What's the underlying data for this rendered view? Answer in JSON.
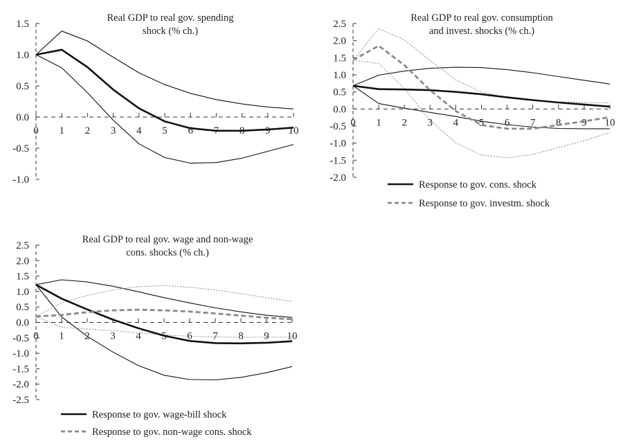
{
  "chart_data": [
    {
      "type": "line",
      "id": "spending",
      "title": [
        "Real GDP to real gov. spending",
        "shock (% ch.)"
      ],
      "x": [
        0,
        1,
        2,
        3,
        4,
        5,
        6,
        7,
        8,
        9,
        10
      ],
      "xticks": [
        "0",
        "1",
        "2",
        "3",
        "4",
        "5",
        "6",
        "7",
        "8",
        "9",
        "10"
      ],
      "ylim": [
        -1.0,
        1.5
      ],
      "yticks": [
        1.5,
        1.0,
        0.5,
        0.0,
        -0.5,
        -1.0
      ],
      "ytick_labels": [
        "1.5",
        "1.0",
        "0.5",
        "0.0",
        "-0.5",
        "-1.0"
      ],
      "series": [
        {
          "name": "Response",
          "role": "main",
          "color": "#111111",
          "style": "solid-thick",
          "values": [
            1.0,
            1.08,
            0.8,
            0.44,
            0.14,
            -0.07,
            -0.18,
            -0.22,
            -0.22,
            -0.2,
            -0.17
          ]
        },
        {
          "name": "Upper band",
          "role": "band",
          "color": "#111111",
          "style": "solid-thin",
          "values": [
            1.0,
            1.38,
            1.22,
            0.96,
            0.71,
            0.52,
            0.38,
            0.28,
            0.21,
            0.16,
            0.13
          ]
        },
        {
          "name": "Lower band",
          "role": "band",
          "color": "#111111",
          "style": "solid-thin",
          "values": [
            1.0,
            0.79,
            0.39,
            -0.05,
            -0.43,
            -0.65,
            -0.74,
            -0.73,
            -0.66,
            -0.55,
            -0.44
          ]
        }
      ],
      "legend": []
    },
    {
      "type": "line",
      "id": "cons-invest",
      "title": [
        "Real GDP to real gov. consumption",
        "and invest. shocks (% ch.)"
      ],
      "x": [
        0,
        1,
        2,
        3,
        4,
        5,
        6,
        7,
        8,
        9,
        10
      ],
      "xticks": [
        "0",
        "1",
        "2",
        "3",
        "4",
        "5",
        "6",
        "7",
        "8",
        "9",
        "10"
      ],
      "ylim": [
        -2.0,
        2.5
      ],
      "yticks": [
        2.5,
        2.0,
        1.5,
        1.0,
        0.5,
        0.0,
        -0.5,
        -1.0,
        -1.5,
        -2.0
      ],
      "ytick_labels": [
        "2.5",
        "2.0",
        "1.5",
        "1.0",
        "0.5",
        "0.0",
        "-0.5",
        "-1.0",
        "-1.5",
        "-2.0"
      ],
      "series": [
        {
          "name": "Response to gov. cons. shock",
          "role": "main",
          "color": "#111111",
          "style": "solid-thick",
          "values": [
            0.68,
            0.58,
            0.57,
            0.55,
            0.5,
            0.43,
            0.34,
            0.26,
            0.19,
            0.13,
            0.07
          ]
        },
        {
          "name": "Cons. upper band",
          "role": "band",
          "color": "#111111",
          "style": "solid-thin",
          "values": [
            0.68,
            0.99,
            1.11,
            1.19,
            1.22,
            1.21,
            1.15,
            1.06,
            0.95,
            0.84,
            0.73
          ]
        },
        {
          "name": "Cons. lower band",
          "role": "band",
          "color": "#111111",
          "style": "solid-thin",
          "values": [
            0.68,
            0.16,
            0.02,
            -0.1,
            -0.22,
            -0.36,
            -0.46,
            -0.53,
            -0.57,
            -0.58,
            -0.58
          ]
        },
        {
          "name": "Response to gov. investm. shock",
          "role": "main",
          "color": "#8a8a8a",
          "style": "dashed-thick",
          "values": [
            1.43,
            1.85,
            1.28,
            0.55,
            -0.06,
            -0.47,
            -0.58,
            -0.58,
            -0.47,
            -0.36,
            -0.24
          ]
        },
        {
          "name": "Investm. upper band",
          "role": "band",
          "color": "#8a8a8a",
          "style": "dotted-thin",
          "values": [
            1.43,
            2.35,
            2.02,
            1.42,
            0.85,
            0.5,
            0.33,
            0.25,
            0.21,
            0.19,
            0.18
          ]
        },
        {
          "name": "Investm. lower band",
          "role": "band",
          "color": "#8a8a8a",
          "style": "dotted-thin",
          "values": [
            1.43,
            1.33,
            0.6,
            -0.33,
            -0.99,
            -1.35,
            -1.43,
            -1.33,
            -1.13,
            -0.93,
            -0.69
          ]
        }
      ],
      "legend": [
        {
          "label": "Response to gov. cons. shock",
          "color": "#111111",
          "style": "solid-thick"
        },
        {
          "label": "Response to gov. investm. shock",
          "color": "#8a8a8a",
          "style": "dashed-thick"
        }
      ]
    },
    {
      "type": "line",
      "id": "wage-nonwage",
      "title": [
        "Real GDP to real gov. wage and non-wage",
        "cons. shocks  (% ch.)"
      ],
      "x": [
        0,
        1,
        2,
        3,
        4,
        5,
        6,
        7,
        8,
        9,
        10
      ],
      "xticks": [
        "0",
        "1",
        "2",
        "3",
        "4",
        "5",
        "6",
        "7",
        "8",
        "9",
        "10"
      ],
      "ylim": [
        -2.5,
        2.5
      ],
      "yticks": [
        2.5,
        2.0,
        1.5,
        1.0,
        0.5,
        0.0,
        -0.5,
        -1.0,
        -1.5,
        -2.0,
        -2.5
      ],
      "ytick_labels": [
        "2.5",
        "2.0",
        "1.5",
        "1.0",
        "0.5",
        "0.0",
        "-0.5",
        "-1.0",
        "-1.5",
        "-2.0",
        "-2.5"
      ],
      "series": [
        {
          "name": "Response to gov. wage-bill shock",
          "role": "main",
          "color": "#111111",
          "style": "solid-thick",
          "values": [
            1.22,
            0.77,
            0.42,
            0.09,
            -0.19,
            -0.43,
            -0.6,
            -0.67,
            -0.68,
            -0.66,
            -0.61
          ]
        },
        {
          "name": "Wage upper band",
          "role": "band",
          "color": "#111111",
          "style": "solid-thin",
          "values": [
            1.22,
            1.38,
            1.31,
            1.17,
            0.99,
            0.8,
            0.63,
            0.47,
            0.34,
            0.23,
            0.16
          ]
        },
        {
          "name": "Wage lower band",
          "role": "band",
          "color": "#111111",
          "style": "solid-thin",
          "values": [
            1.22,
            0.18,
            -0.45,
            -0.96,
            -1.4,
            -1.71,
            -1.85,
            -1.86,
            -1.78,
            -1.63,
            -1.43
          ]
        },
        {
          "name": "Response to gov. non-wage cons. shock",
          "role": "main",
          "color": "#8a8a8a",
          "style": "dashed-thick",
          "values": [
            0.19,
            0.24,
            0.33,
            0.39,
            0.41,
            0.39,
            0.35,
            0.29,
            0.22,
            0.15,
            0.1
          ]
        },
        {
          "name": "Non-wage upper band",
          "role": "band",
          "color": "#8a8a8a",
          "style": "dotted-thin",
          "values": [
            0.19,
            0.64,
            0.87,
            1.05,
            1.16,
            1.19,
            1.14,
            1.05,
            0.93,
            0.8,
            0.68
          ]
        },
        {
          "name": "Non-wage lower band",
          "role": "band",
          "color": "#8a8a8a",
          "style": "dotted-thin",
          "values": [
            0.19,
            -0.16,
            -0.21,
            -0.27,
            -0.34,
            -0.4,
            -0.45,
            -0.47,
            -0.48,
            -0.48,
            -0.48
          ]
        }
      ],
      "legend": [
        {
          "label": "Response to gov. wage-bill shock",
          "color": "#111111",
          "style": "solid-thick"
        },
        {
          "label": "Response to gov. non-wage cons. shock",
          "color": "#8a8a8a",
          "style": "dashed-thick"
        }
      ]
    }
  ]
}
